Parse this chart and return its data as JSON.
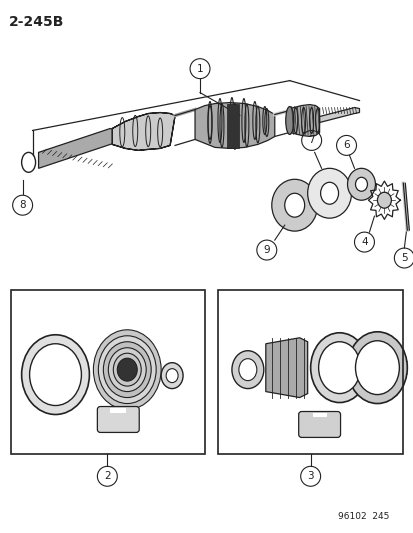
{
  "title": "2-245B",
  "footer": "96102  245",
  "bg_color": "#ffffff",
  "fig_width": 4.14,
  "fig_height": 5.33,
  "dpi": 100
}
